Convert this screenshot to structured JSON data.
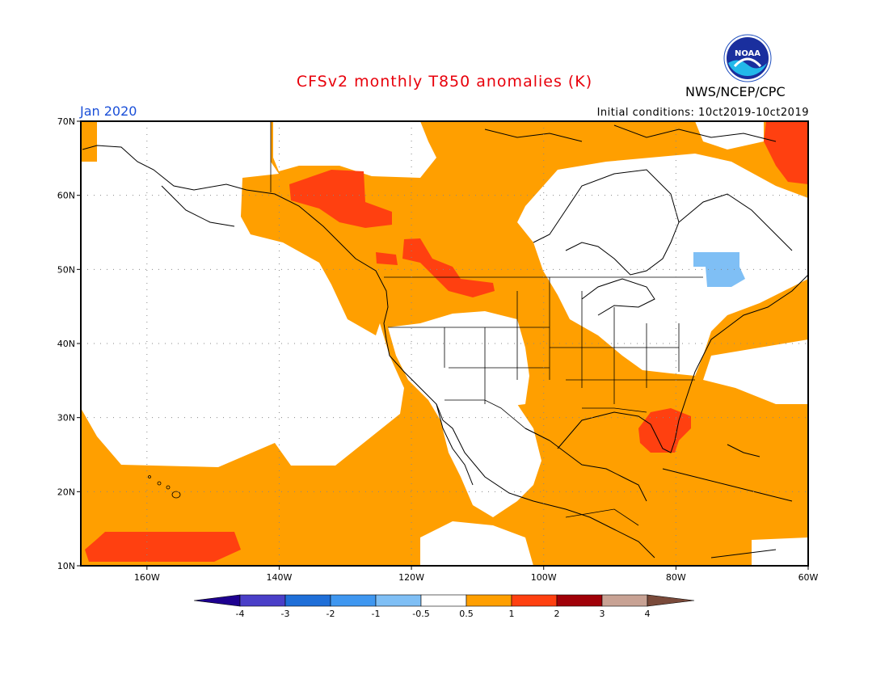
{
  "header": {
    "title": "CFSv2 monthly T850 anomalies (K)",
    "valid_month": "Jan 2020",
    "initial_conditions": "Initial conditions: 10ct2019-10ct2019",
    "agency": "NWS/NCEP/CPC",
    "logo_text": "NOAA",
    "title_color": "#e8000b",
    "month_color": "#1a4fd8"
  },
  "map": {
    "projection": "cylindrical",
    "lon_range": [
      -170,
      -60
    ],
    "lat_range": [
      10,
      70
    ],
    "lat_labels": [
      "10N",
      "20N",
      "30N",
      "40N",
      "50N",
      "60N",
      "70N"
    ],
    "lon_labels": [
      "160W",
      "140W",
      "120W",
      "100W",
      "80W",
      "60W"
    ],
    "gridlines": "dotted"
  },
  "colorbar": {
    "labels": [
      "-4",
      "-3",
      "-2",
      "-1",
      "-0.5",
      "0.5",
      "1",
      "2",
      "3",
      "4"
    ],
    "colors": [
      "#1e0090",
      "#4a3fc8",
      "#1f6fd8",
      "#3f97f0",
      "#7fbff5",
      "#ffffff",
      "#ff9f00",
      "#ff4010",
      "#a00008",
      "#c8a294",
      "#7a4a3a"
    ]
  }
}
